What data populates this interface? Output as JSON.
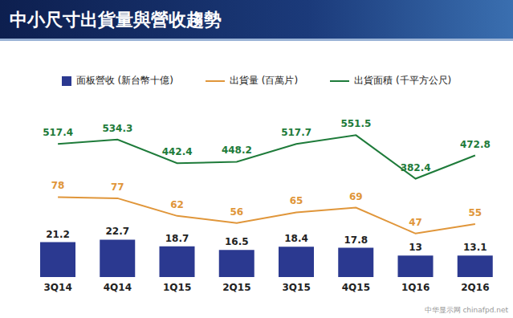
{
  "chart_data": [
    {
      "type": "bar",
      "title": "中小尺寸出貨量與營收趨勢",
      "annotations": [
        "中华显示网",
        "chinafpd.net"
      ],
      "categories": [
        "3Q14",
        "4Q14",
        "1Q15",
        "2Q15",
        "3Q15",
        "4Q15",
        "1Q16",
        "2Q16"
      ],
      "series": [
        {
          "name": "面板營收 (新台幣十億)",
          "color": "#2b3990",
          "values": [
            21.2,
            22.7,
            18.7,
            16.5,
            18.4,
            17.8,
            13.0,
            13.1
          ]
        }
      ],
      "ylim": [
        0,
        100
      ],
      "tick_labels": false,
      "data_labels": true,
      "legend": "top"
    },
    {
      "type": "line",
      "categories": [
        "3Q14",
        "4Q14",
        "1Q15",
        "2Q15",
        "3Q15",
        "4Q15",
        "1Q16",
        "2Q16"
      ],
      "series": [
        {
          "name": "出貨量 (百萬片)",
          "color": "#e0963a",
          "values": [
            78,
            77,
            62,
            56,
            65,
            69,
            47,
            55
          ]
        }
      ],
      "ylim": [
        10,
        150
      ],
      "tick_labels": false,
      "data_labels": true
    },
    {
      "type": "line",
      "categories": [
        "3Q14",
        "4Q14",
        "1Q15",
        "2Q15",
        "3Q15",
        "4Q15",
        "1Q16",
        "2Q16"
      ],
      "series": [
        {
          "name": "出貨面積 (千平方公尺)",
          "color": "#1e7b3a",
          "values": [
            517.4,
            534.3,
            442.4,
            448.2,
            517.7,
            551.5,
            382.4,
            472.8
          ]
        }
      ],
      "ylim": [
        0,
        640
      ],
      "tick_labels": false,
      "data_labels": true
    }
  ]
}
